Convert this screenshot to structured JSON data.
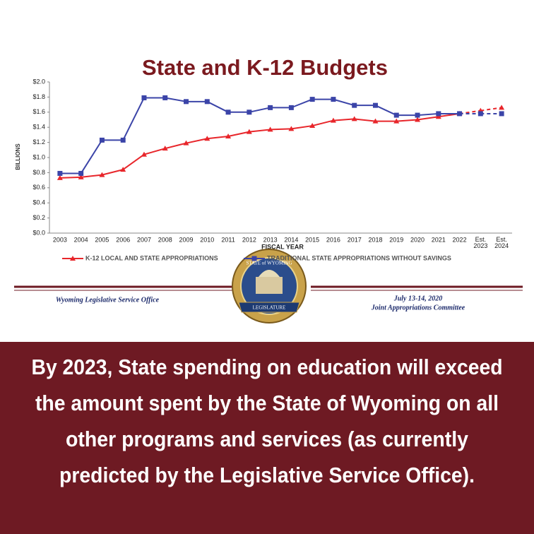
{
  "chart_data": {
    "type": "line",
    "title": "State and K-12 Budgets",
    "x_label": "FISCAL YEAR",
    "y_label": "BILLIONS",
    "categories": [
      "2003",
      "2004",
      "2005",
      "2006",
      "2007",
      "2008",
      "2009",
      "2010",
      "2011",
      "2012",
      "2013",
      "2014",
      "2015",
      "2016",
      "2017",
      "2018",
      "2019",
      "2020",
      "2021",
      "2022",
      "Est. 2023",
      "Est. 2024"
    ],
    "estimate_from_index": 19,
    "series": [
      {
        "name": "K-12 LOCAL AND STATE APPROPRIATIONS",
        "color": "#e8262b",
        "marker": "triangle",
        "values": [
          0.73,
          0.74,
          0.77,
          0.84,
          1.04,
          1.12,
          1.19,
          1.25,
          1.28,
          1.34,
          1.37,
          1.38,
          1.42,
          1.49,
          1.51,
          1.48,
          1.48,
          1.5,
          1.54,
          1.58,
          1.62,
          1.66
        ]
      },
      {
        "name": "TRADITIONAL STATE APPROPRIATIONS WITHOUT SAVINGS",
        "color": "#3b44a8",
        "marker": "square",
        "values": [
          0.79,
          0.79,
          1.23,
          1.23,
          1.79,
          1.79,
          1.74,
          1.74,
          1.6,
          1.6,
          1.66,
          1.66,
          1.77,
          1.77,
          1.69,
          1.69,
          1.56,
          1.56,
          1.58,
          1.58,
          1.58,
          1.58
        ]
      }
    ],
    "ylim": [
      0,
      2.0
    ],
    "yticks": [
      {
        "value": 0,
        "label": "$0.0"
      },
      {
        "value": 0.2,
        "label": "$0.2"
      },
      {
        "value": 0.4,
        "label": "$0.4"
      },
      {
        "value": 0.6,
        "label": "$0.6"
      },
      {
        "value": 0.8,
        "label": "$0.8"
      },
      {
        "value": 1.0,
        "label": "$1.0"
      },
      {
        "value": 1.2,
        "label": "$1.2"
      },
      {
        "value": 1.4,
        "label": "$1.4"
      },
      {
        "value": 1.6,
        "label": "$1.6"
      },
      {
        "value": 1.8,
        "label": "$1.8"
      },
      {
        "value": 2.0,
        "label": "$2.0"
      }
    ],
    "grid": false,
    "legend": "bottom"
  },
  "footer": {
    "left": "Wyoming Legislative Service Office",
    "right_lines": [
      "July 13-14, 2020",
      "Joint Appropriations Committee"
    ],
    "seal_top": "STATE of WYOMING",
    "seal_ribbon": "LEGISLATURE"
  },
  "caption": [
    "By 2023, State spending on education will exceed",
    "the amount spent by the State of Wyoming on all",
    "other programs and services (as currently",
    "predicted by the Legislative Service Office)."
  ]
}
